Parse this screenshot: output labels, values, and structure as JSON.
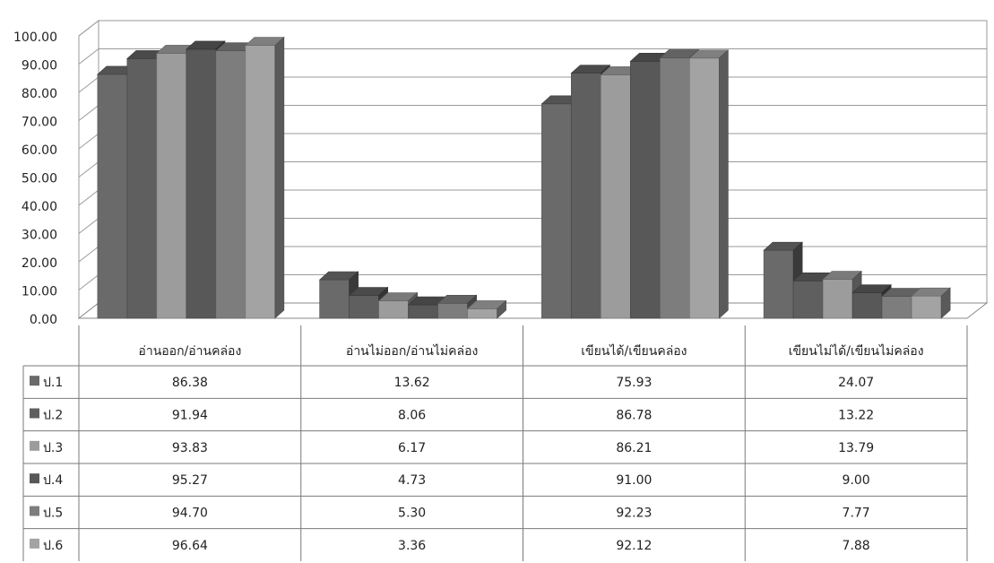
{
  "chart_data": {
    "type": "bar",
    "categories": [
      "อ่านออก/อ่านคล่อง",
      "อ่านไม่ออก/อ่านไม่คล่อง",
      "เขียนได้/เขียนคล่อง",
      "เขียนไม่ได้/เขียนไม่คล่อง"
    ],
    "series": [
      {
        "name": "ป.1",
        "values": [
          86.38,
          13.62,
          75.93,
          24.07
        ],
        "color": "#6a6a6a",
        "value_labels": [
          "86.38",
          "13.62",
          "75.93",
          "24.07"
        ]
      },
      {
        "name": "ป.2",
        "values": [
          91.94,
          8.06,
          86.78,
          13.22
        ],
        "color": "#5f5f5f",
        "value_labels": [
          "91.94",
          "8.06",
          "86.78",
          "13.22"
        ]
      },
      {
        "name": "ป.3",
        "values": [
          93.83,
          6.17,
          86.21,
          13.79
        ],
        "color": "#9c9c9c",
        "value_labels": [
          "93.83",
          "6.17",
          "86.21",
          "13.79"
        ]
      },
      {
        "name": "ป.4",
        "values": [
          95.27,
          4.73,
          91.0,
          9.0
        ],
        "color": "#585858",
        "value_labels": [
          "95.27",
          "4.73",
          "91.00",
          "9.00"
        ]
      },
      {
        "name": "ป.5",
        "values": [
          94.7,
          5.3,
          92.23,
          7.77
        ],
        "color": "#7d7d7d",
        "value_labels": [
          "94.70",
          "5.30",
          "92.23",
          "7.77"
        ]
      },
      {
        "name": "ป.6",
        "values": [
          96.64,
          3.36,
          92.12,
          7.88
        ],
        "color": "#a3a3a3",
        "value_labels": [
          "96.64",
          "3.36",
          "92.12",
          "7.88"
        ]
      }
    ],
    "ylim": [
      0,
      100
    ],
    "yticks": [
      "0.00",
      "10.00",
      "20.00",
      "30.00",
      "40.00",
      "50.00",
      "60.00",
      "70.00",
      "80.00",
      "90.00",
      "100.00"
    ],
    "grid": true,
    "style": "3d-clustered-column",
    "legend": "data-table-below"
  }
}
